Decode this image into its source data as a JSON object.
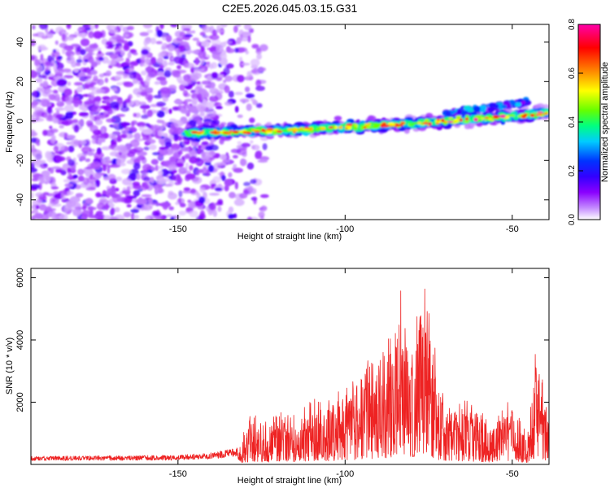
{
  "figure": {
    "title": "C2E5.2026.045.03.15.G31"
  },
  "chart_data": [
    {
      "type": "heatmap",
      "title": "C2E5.2026.045.03.15.G31",
      "xlabel": "Height of straight line (km)",
      "ylabel": "Frequency (Hz)",
      "xlim": [
        -194,
        -39
      ],
      "ylim": [
        -50,
        49
      ],
      "x_ticks": [
        -150,
        -100,
        -50
      ],
      "y_ticks": [
        -40,
        -20,
        0,
        20,
        40
      ],
      "x_tick_labels": [
        "-150",
        "-100",
        "-50"
      ],
      "y_tick_labels": [
        "-40",
        "-20",
        "0",
        "20",
        "40"
      ],
      "noise_region_x": [
        -194,
        -128
      ],
      "signal_band": {
        "x_start": -150,
        "x_end": -39,
        "center_frequency_start": -6,
        "center_frequency_end": 4,
        "peak_amplitude": 0.8
      },
      "colorbar": {
        "label": "Normalized spectral amplitude",
        "range": [
          0.0,
          0.8
        ],
        "ticks": [
          0.0,
          0.2,
          0.4,
          0.6,
          0.8
        ],
        "tick_labels": [
          "0.0",
          "0.2",
          "0.4",
          "0.6",
          "0.8"
        ],
        "colormap": [
          "#ffffff",
          "#c48bff",
          "#8a00ff",
          "#3300ff",
          "#0033ff",
          "#00ccff",
          "#00ff80",
          "#66ff00",
          "#ffff00",
          "#ff8800",
          "#ff0000",
          "#ff00aa"
        ]
      }
    },
    {
      "type": "line",
      "xlabel": "Height of straight line (km)",
      "ylabel": "SNR (10 * v/v)",
      "xlim": [
        -194,
        -39
      ],
      "ylim": [
        0,
        6300
      ],
      "x_ticks": [
        -150,
        -100,
        -50
      ],
      "y_ticks": [
        2000,
        4000,
        6000
      ],
      "x_tick_labels": [
        "-150",
        "-100",
        "-50"
      ],
      "y_tick_labels": [
        "2000",
        "4000",
        "6000"
      ],
      "color": "#ee2222",
      "envelope": {
        "x": [
          -194,
          -170,
          -150,
          -140,
          -132,
          -128,
          -124,
          -120,
          -115,
          -110,
          -105,
          -100,
          -95,
          -90,
          -86,
          -83,
          -80,
          -78,
          -76,
          -72,
          -68,
          -64,
          -60,
          -56,
          -52,
          -48,
          -45,
          -43,
          -41,
          -39
        ],
        "y": [
          260,
          280,
          300,
          380,
          560,
          1700,
          1350,
          1850,
          1650,
          2100,
          2250,
          2400,
          3200,
          3800,
          4300,
          6100,
          4200,
          6000,
          6200,
          2900,
          2200,
          2100,
          1800,
          1400,
          2050,
          1700,
          1000,
          4350,
          2900,
          1300
        ]
      }
    }
  ]
}
